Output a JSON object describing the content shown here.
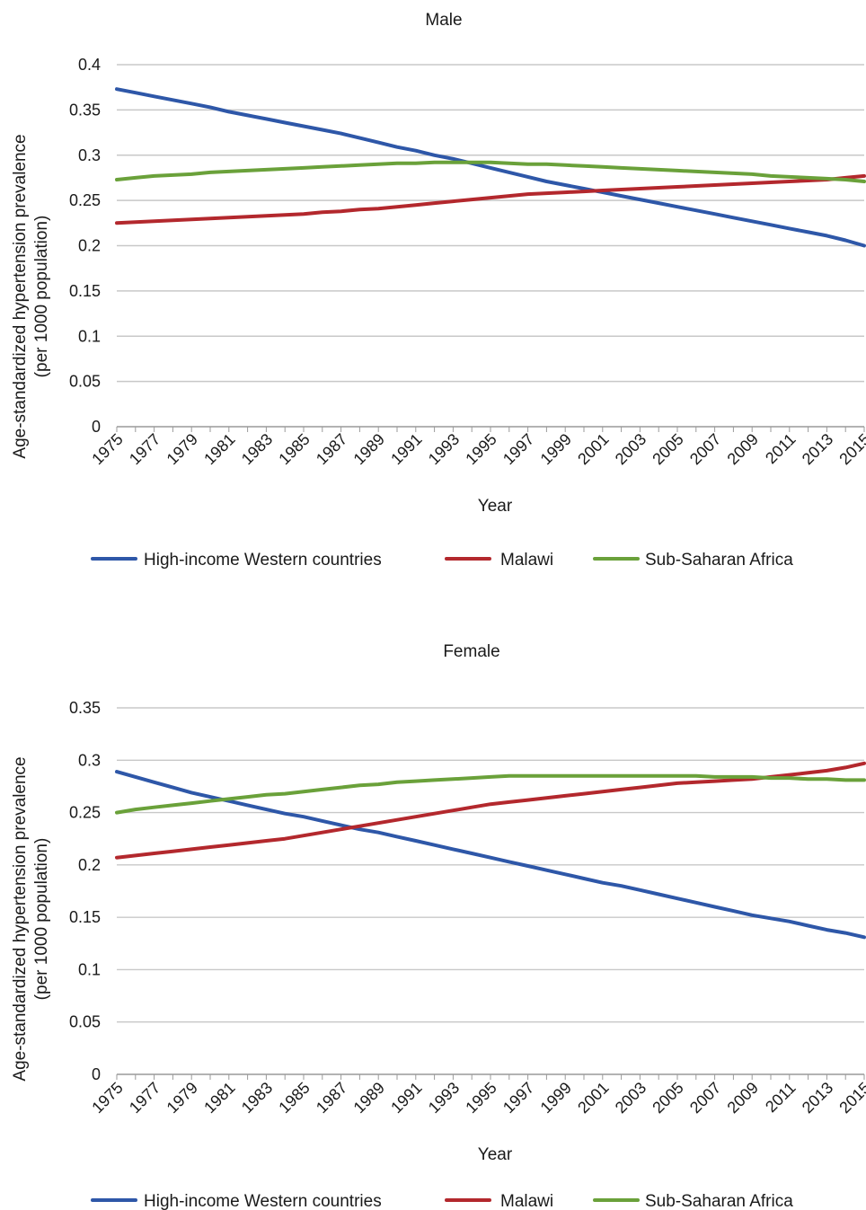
{
  "chart_data": [
    {
      "type": "line",
      "title": "Male",
      "xlabel": "Year",
      "ylabel_line1": "Age-standardized hypertension prevalence",
      "ylabel_line2": "(per 1000 population)",
      "ylim": [
        0,
        0.4
      ],
      "yticks": [
        "0",
        "0.05",
        "0.1",
        "0.15",
        "0.2",
        "0.25",
        "0.3",
        "0.35",
        "0.4"
      ],
      "ytick_values": [
        0,
        0.05,
        0.1,
        0.15,
        0.2,
        0.25,
        0.3,
        0.35,
        0.4
      ],
      "x": [
        1975,
        1976,
        1977,
        1978,
        1979,
        1980,
        1981,
        1982,
        1983,
        1984,
        1985,
        1986,
        1987,
        1988,
        1989,
        1990,
        1991,
        1992,
        1993,
        1994,
        1995,
        1996,
        1997,
        1998,
        1999,
        2000,
        2001,
        2002,
        2003,
        2004,
        2005,
        2006,
        2007,
        2008,
        2009,
        2010,
        2011,
        2012,
        2013,
        2014,
        2015
      ],
      "xtick_labels": [
        "1975",
        "1977",
        "1979",
        "1981",
        "1983",
        "1985",
        "1987",
        "1989",
        "1991",
        "1993",
        "1995",
        "1997",
        "1999",
        "2001",
        "2003",
        "2005",
        "2007",
        "2009",
        "2011",
        "2013",
        "2015"
      ],
      "grid": true,
      "legend_position": "bottom",
      "series": [
        {
          "name": "High-income Western countries",
          "color": "#2e57a8",
          "values": [
            0.373,
            0.369,
            0.365,
            0.361,
            0.357,
            0.353,
            0.348,
            0.344,
            0.34,
            0.336,
            0.332,
            0.328,
            0.324,
            0.319,
            0.314,
            0.309,
            0.305,
            0.3,
            0.296,
            0.291,
            0.286,
            0.281,
            0.276,
            0.271,
            0.267,
            0.263,
            0.259,
            0.255,
            0.251,
            0.247,
            0.243,
            0.239,
            0.235,
            0.231,
            0.227,
            0.223,
            0.219,
            0.215,
            0.211,
            0.206,
            0.2
          ]
        },
        {
          "name": "Malawi",
          "color": "#b3282d",
          "values": [
            0.225,
            0.226,
            0.227,
            0.228,
            0.229,
            0.23,
            0.231,
            0.232,
            0.233,
            0.234,
            0.235,
            0.237,
            0.238,
            0.24,
            0.241,
            0.243,
            0.245,
            0.247,
            0.249,
            0.251,
            0.253,
            0.255,
            0.257,
            0.258,
            0.259,
            0.26,
            0.261,
            0.262,
            0.263,
            0.264,
            0.265,
            0.266,
            0.267,
            0.268,
            0.269,
            0.27,
            0.271,
            0.272,
            0.273,
            0.275,
            0.277
          ]
        },
        {
          "name": "Sub-Saharan Africa",
          "color": "#6aa13a",
          "values": [
            0.273,
            0.275,
            0.277,
            0.278,
            0.279,
            0.281,
            0.282,
            0.283,
            0.284,
            0.285,
            0.286,
            0.287,
            0.288,
            0.289,
            0.29,
            0.291,
            0.291,
            0.292,
            0.292,
            0.292,
            0.292,
            0.291,
            0.29,
            0.29,
            0.289,
            0.288,
            0.287,
            0.286,
            0.285,
            0.284,
            0.283,
            0.282,
            0.281,
            0.28,
            0.279,
            0.277,
            0.276,
            0.275,
            0.274,
            0.273,
            0.271
          ]
        }
      ]
    },
    {
      "type": "line",
      "title": "Female",
      "xlabel": "Year",
      "ylabel_line1": "Age-standardized hypertension prevalence",
      "ylabel_line2": "(per 1000 population)",
      "ylim": [
        0,
        0.35
      ],
      "yticks": [
        "0",
        "0.05",
        "0.1",
        "0.15",
        "0.2",
        "0.25",
        "0.3",
        "0.35"
      ],
      "ytick_values": [
        0,
        0.05,
        0.1,
        0.15,
        0.2,
        0.25,
        0.3,
        0.35
      ],
      "x": [
        1975,
        1976,
        1977,
        1978,
        1979,
        1980,
        1981,
        1982,
        1983,
        1984,
        1985,
        1986,
        1987,
        1988,
        1989,
        1990,
        1991,
        1992,
        1993,
        1994,
        1995,
        1996,
        1997,
        1998,
        1999,
        2000,
        2001,
        2002,
        2003,
        2004,
        2005,
        2006,
        2007,
        2008,
        2009,
        2010,
        2011,
        2012,
        2013,
        2014,
        2015
      ],
      "xtick_labels": [
        "1975",
        "1977",
        "1979",
        "1981",
        "1983",
        "1985",
        "1987",
        "1989",
        "1991",
        "1993",
        "1995",
        "1997",
        "1999",
        "2001",
        "2003",
        "2005",
        "2007",
        "2009",
        "2011",
        "2013",
        "2015"
      ],
      "grid": true,
      "legend_position": "bottom",
      "series": [
        {
          "name": "High-income Western countries",
          "color": "#2e57a8",
          "values": [
            0.289,
            0.284,
            0.279,
            0.274,
            0.269,
            0.265,
            0.261,
            0.257,
            0.253,
            0.249,
            0.246,
            0.242,
            0.238,
            0.234,
            0.231,
            0.227,
            0.223,
            0.219,
            0.215,
            0.211,
            0.207,
            0.203,
            0.199,
            0.195,
            0.191,
            0.187,
            0.183,
            0.18,
            0.176,
            0.172,
            0.168,
            0.164,
            0.16,
            0.156,
            0.152,
            0.149,
            0.146,
            0.142,
            0.138,
            0.135,
            0.131
          ]
        },
        {
          "name": "Malawi",
          "color": "#b3282d",
          "values": [
            0.207,
            0.209,
            0.211,
            0.213,
            0.215,
            0.217,
            0.219,
            0.221,
            0.223,
            0.225,
            0.228,
            0.231,
            0.234,
            0.237,
            0.24,
            0.243,
            0.246,
            0.249,
            0.252,
            0.255,
            0.258,
            0.26,
            0.262,
            0.264,
            0.266,
            0.268,
            0.27,
            0.272,
            0.274,
            0.276,
            0.278,
            0.279,
            0.28,
            0.281,
            0.282,
            0.284,
            0.286,
            0.288,
            0.29,
            0.293,
            0.297
          ]
        },
        {
          "name": "Sub-Saharan Africa",
          "color": "#6aa13a",
          "values": [
            0.25,
            0.253,
            0.255,
            0.257,
            0.259,
            0.261,
            0.263,
            0.265,
            0.267,
            0.268,
            0.27,
            0.272,
            0.274,
            0.276,
            0.277,
            0.279,
            0.28,
            0.281,
            0.282,
            0.283,
            0.284,
            0.285,
            0.285,
            0.285,
            0.285,
            0.285,
            0.285,
            0.285,
            0.285,
            0.285,
            0.285,
            0.285,
            0.284,
            0.284,
            0.284,
            0.283,
            0.283,
            0.282,
            0.282,
            0.281,
            0.281
          ]
        }
      ]
    }
  ]
}
